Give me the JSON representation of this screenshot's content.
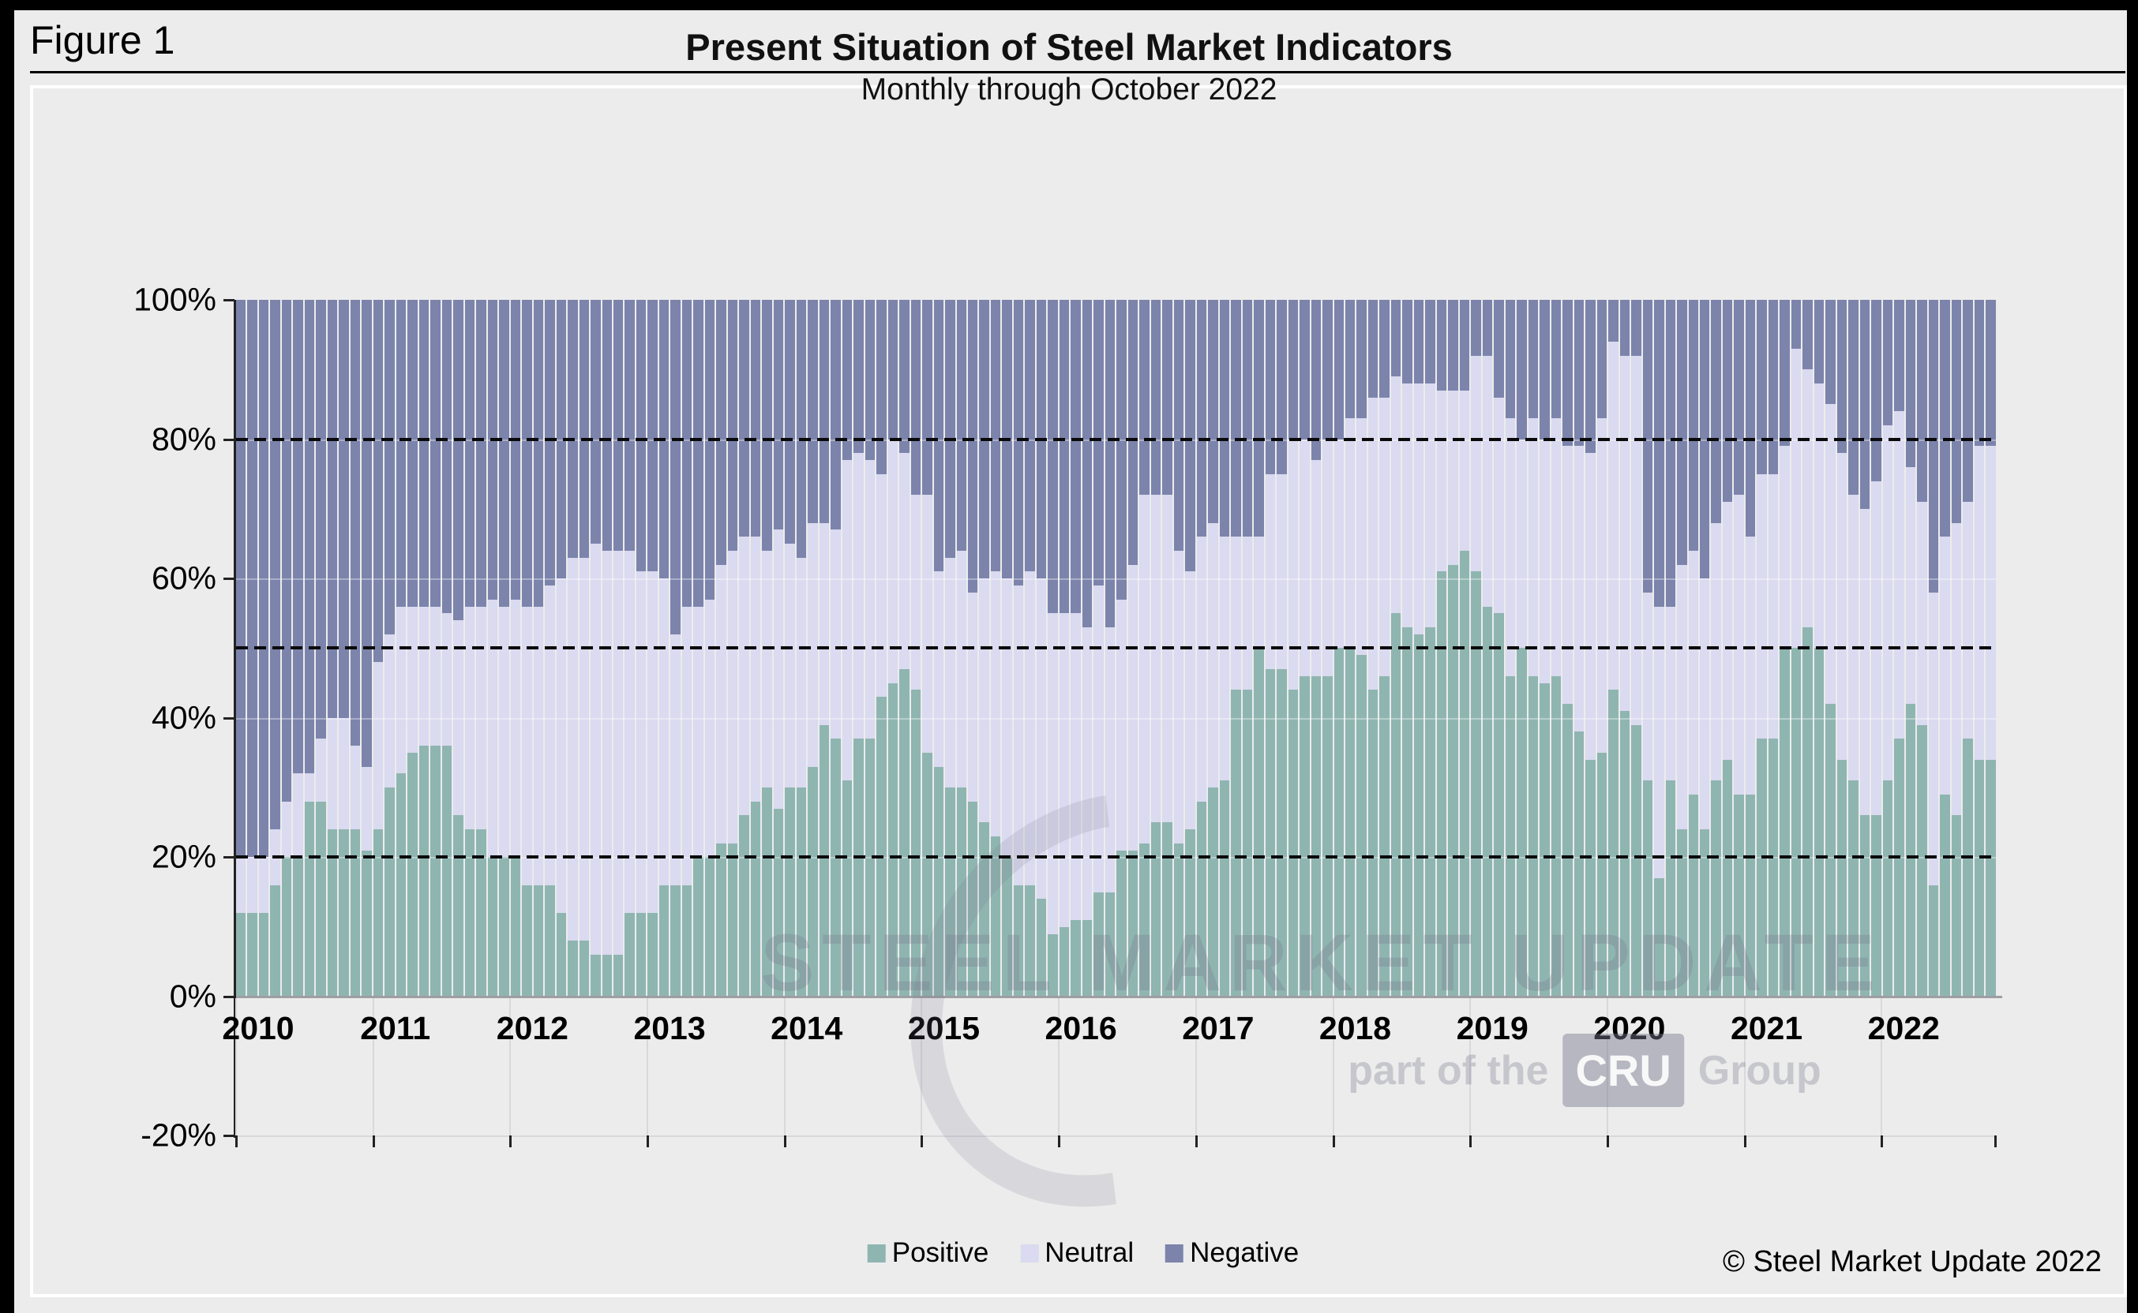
{
  "window": {
    "figure_label": "Figure 1"
  },
  "chart": {
    "title": "Present Situation of Steel Market Indicators",
    "subtitle": "Monthly through October 2022",
    "copyright": "© Steel Market Update 2022",
    "watermark": {
      "line1": "STEEL MARKET UPDATE",
      "line2_prefix": "part of the",
      "line2_box": "CRU",
      "line2_suffix": "Group"
    },
    "legend": [
      {
        "label": "Positive",
        "color": "#8FB5B1"
      },
      {
        "label": "Neutral",
        "color": "#DADAF0"
      },
      {
        "label": "Negative",
        "color": "#7C84AC"
      }
    ]
  },
  "axis": {
    "y_ticks": [
      "100%",
      "80%",
      "60%",
      "40%",
      "20%",
      "0%",
      "-20%"
    ],
    "y_max": 100,
    "y_min": -20,
    "dashed_at": [
      80,
      50,
      20
    ],
    "faint_grid_at": [
      80,
      60,
      40,
      20
    ],
    "x_years": [
      "2010",
      "2011",
      "2012",
      "2013",
      "2014",
      "2015",
      "2016",
      "2017",
      "2018",
      "2019",
      "2020",
      "2021",
      "2022"
    ]
  },
  "colors": {
    "background": "#ECECEC",
    "positive": "#8FB5B1",
    "neutral": "#DADAF0",
    "negative": "#7C84AC",
    "axis": "#222222",
    "baseline": "#9E9EA3",
    "separator": "#D8D8DD",
    "dashed_line": "#0A0A0A"
  },
  "chart_data": {
    "type": "bar",
    "stacked": true,
    "stacked_to_100_percent": true,
    "unit": "%",
    "title": "Present Situation of Steel Market Indicators",
    "subtitle": "Monthly through October 2022",
    "xlabel": "",
    "ylabel": "",
    "ylim": [
      -20,
      100
    ],
    "grid": "dashed horizontal lines at 20%, 50%, 80%",
    "legend_position": "bottom-center",
    "categories": [
      "2010-01",
      "2010-02",
      "2010-03",
      "2010-04",
      "2010-05",
      "2010-06",
      "2010-07",
      "2010-08",
      "2010-09",
      "2010-10",
      "2010-11",
      "2010-12",
      "2011-01",
      "2011-02",
      "2011-03",
      "2011-04",
      "2011-05",
      "2011-06",
      "2011-07",
      "2011-08",
      "2011-09",
      "2011-10",
      "2011-11",
      "2011-12",
      "2012-01",
      "2012-02",
      "2012-03",
      "2012-04",
      "2012-05",
      "2012-06",
      "2012-07",
      "2012-08",
      "2012-09",
      "2012-10",
      "2012-11",
      "2012-12",
      "2013-01",
      "2013-02",
      "2013-03",
      "2013-04",
      "2013-05",
      "2013-06",
      "2013-07",
      "2013-08",
      "2013-09",
      "2013-10",
      "2013-11",
      "2013-12",
      "2014-01",
      "2014-02",
      "2014-03",
      "2014-04",
      "2014-05",
      "2014-06",
      "2014-07",
      "2014-08",
      "2014-09",
      "2014-10",
      "2014-11",
      "2014-12",
      "2015-01",
      "2015-02",
      "2015-03",
      "2015-04",
      "2015-05",
      "2015-06",
      "2015-07",
      "2015-08",
      "2015-09",
      "2015-10",
      "2015-11",
      "2015-12",
      "2016-01",
      "2016-02",
      "2016-03",
      "2016-04",
      "2016-05",
      "2016-06",
      "2016-07",
      "2016-08",
      "2016-09",
      "2016-10",
      "2016-11",
      "2016-12",
      "2017-01",
      "2017-02",
      "2017-03",
      "2017-04",
      "2017-05",
      "2017-06",
      "2017-07",
      "2017-08",
      "2017-09",
      "2017-10",
      "2017-11",
      "2017-12",
      "2018-01",
      "2018-02",
      "2018-03",
      "2018-04",
      "2018-05",
      "2018-06",
      "2018-07",
      "2018-08",
      "2018-09",
      "2018-10",
      "2018-11",
      "2018-12",
      "2019-01",
      "2019-02",
      "2019-03",
      "2019-04",
      "2019-05",
      "2019-06",
      "2019-07",
      "2019-08",
      "2019-09",
      "2019-10",
      "2019-11",
      "2019-12",
      "2020-01",
      "2020-02",
      "2020-03",
      "2020-04",
      "2020-05",
      "2020-06",
      "2020-07",
      "2020-08",
      "2020-09",
      "2020-10",
      "2020-11",
      "2020-12",
      "2021-01",
      "2021-02",
      "2021-03",
      "2021-04",
      "2021-05",
      "2021-06",
      "2021-07",
      "2021-08",
      "2021-09",
      "2021-10",
      "2021-11",
      "2021-12",
      "2022-01",
      "2022-02",
      "2022-03",
      "2022-04",
      "2022-05",
      "2022-06",
      "2022-07",
      "2022-08",
      "2022-09",
      "2022-10"
    ],
    "series": [
      {
        "name": "Positive",
        "values": [
          12,
          12,
          12,
          16,
          20,
          20,
          28,
          28,
          24,
          24,
          24,
          21,
          24,
          30,
          32,
          35,
          36,
          36,
          36,
          26,
          24,
          24,
          20,
          20,
          20,
          16,
          16,
          16,
          12,
          8,
          8,
          6,
          6,
          6,
          12,
          12,
          12,
          16,
          16,
          16,
          20,
          20,
          22,
          22,
          26,
          28,
          30,
          27,
          30,
          30,
          33,
          39,
          37,
          31,
          37,
          37,
          43,
          45,
          47,
          44,
          35,
          33,
          30,
          30,
          28,
          25,
          23,
          20,
          16,
          16,
          14,
          9,
          10,
          11,
          11,
          15,
          15,
          21,
          21,
          22,
          25,
          25,
          22,
          24,
          28,
          30,
          31,
          44,
          44,
          50,
          47,
          47,
          44,
          46,
          46,
          46,
          50,
          50,
          49,
          44,
          46,
          55,
          53,
          52,
          53,
          61,
          62,
          64,
          61,
          56,
          55,
          46,
          50,
          46,
          45,
          46,
          42,
          38,
          34,
          35,
          44,
          41,
          39,
          31,
          17,
          31,
          24,
          29,
          24,
          31,
          34,
          29,
          29,
          37,
          37,
          50,
          50,
          53,
          50,
          42,
          34,
          31,
          26,
          26,
          31,
          37,
          42,
          39,
          16,
          29,
          26,
          37,
          34,
          34
        ]
      },
      {
        "name": "Neutral",
        "values": [
          8,
          8,
          8,
          8,
          8,
          12,
          4,
          9,
          16,
          16,
          12,
          12,
          24,
          22,
          24,
          21,
          20,
          20,
          19,
          28,
          32,
          32,
          37,
          36,
          37,
          40,
          40,
          43,
          48,
          55,
          55,
          59,
          58,
          58,
          52,
          49,
          49,
          44,
          36,
          40,
          36,
          37,
          40,
          42,
          40,
          38,
          34,
          40,
          35,
          33,
          35,
          29,
          30,
          46,
          41,
          40,
          32,
          35,
          31,
          28,
          37,
          28,
          33,
          34,
          30,
          35,
          38,
          40,
          43,
          45,
          46,
          46,
          45,
          44,
          42,
          44,
          38,
          36,
          41,
          50,
          47,
          47,
          42,
          37,
          38,
          38,
          35,
          22,
          22,
          16,
          28,
          28,
          36,
          34,
          31,
          34,
          30,
          33,
          34,
          42,
          40,
          34,
          35,
          36,
          35,
          26,
          25,
          23,
          31,
          36,
          31,
          37,
          30,
          37,
          35,
          37,
          37,
          41,
          44,
          48,
          50,
          51,
          53,
          27,
          39,
          25,
          38,
          35,
          36,
          37,
          37,
          43,
          37,
          38,
          38,
          29,
          43,
          37,
          38,
          43,
          44,
          41,
          44,
          48,
          51,
          47,
          34,
          32,
          42,
          37,
          42,
          34,
          45,
          45
        ]
      },
      {
        "name": "Negative",
        "values": [
          80,
          80,
          80,
          76,
          72,
          68,
          68,
          63,
          60,
          60,
          64,
          67,
          52,
          48,
          44,
          44,
          44,
          44,
          45,
          46,
          44,
          44,
          43,
          44,
          43,
          44,
          44,
          41,
          40,
          37,
          37,
          35,
          36,
          36,
          36,
          39,
          39,
          40,
          48,
          44,
          44,
          43,
          38,
          36,
          34,
          34,
          36,
          33,
          35,
          37,
          32,
          32,
          33,
          23,
          22,
          23,
          25,
          20,
          22,
          28,
          28,
          39,
          37,
          36,
          42,
          40,
          39,
          40,
          41,
          39,
          40,
          45,
          45,
          45,
          47,
          41,
          47,
          43,
          38,
          28,
          28,
          28,
          36,
          39,
          34,
          32,
          34,
          34,
          34,
          34,
          25,
          25,
          20,
          20,
          23,
          20,
          20,
          17,
          17,
          14,
          14,
          11,
          12,
          12,
          12,
          13,
          13,
          13,
          8,
          8,
          14,
          17,
          20,
          17,
          20,
          17,
          21,
          21,
          22,
          17,
          6,
          8,
          8,
          42,
          44,
          44,
          38,
          36,
          40,
          32,
          29,
          28,
          34,
          25,
          25,
          21,
          7,
          10,
          12,
          15,
          22,
          28,
          30,
          26,
          18,
          16,
          24,
          29,
          42,
          34,
          32,
          29,
          21,
          21
        ]
      }
    ]
  }
}
